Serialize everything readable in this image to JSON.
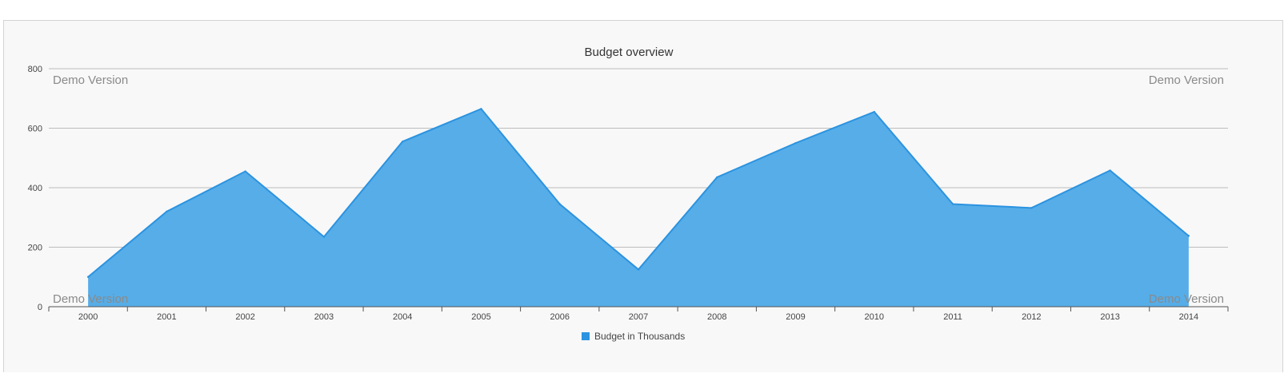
{
  "chart_data": {
    "type": "area",
    "title": "Budget overview",
    "xlabel": "",
    "ylabel": "",
    "categories": [
      "2000",
      "2001",
      "2002",
      "2003",
      "2004",
      "2005",
      "2006",
      "2007",
      "2008",
      "2009",
      "2010",
      "2011",
      "2012",
      "2013",
      "2014"
    ],
    "series": [
      {
        "name": "Budget in Thousands",
        "values": [
          100,
          320,
          455,
          235,
          555,
          665,
          345,
          125,
          435,
          550,
          655,
          345,
          332,
          458,
          238
        ],
        "color": "#2b93e0",
        "fill": "#56ade8"
      }
    ],
    "ylim": [
      0,
      800
    ],
    "yticks": [
      "0",
      "200",
      "400",
      "600",
      "800"
    ],
    "grid": true,
    "legend": "bottom-center"
  },
  "watermark": {
    "text": "Demo Version",
    "color": "#8a8a8a"
  }
}
